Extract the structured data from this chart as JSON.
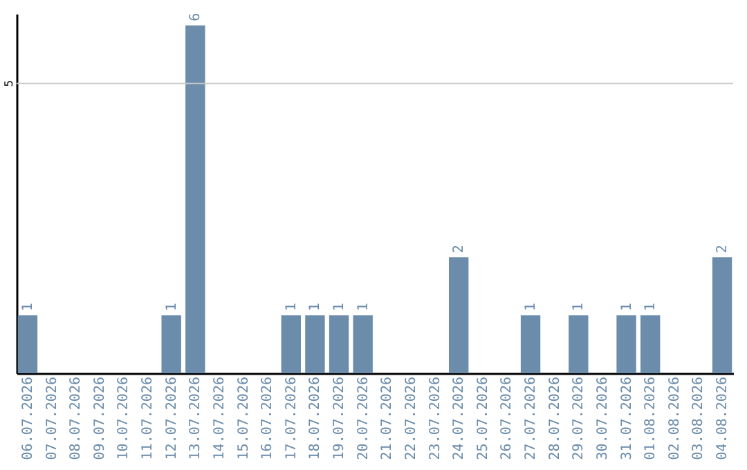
{
  "chart_data": {
    "type": "bar",
    "categories": [
      "06.07.2026",
      "07.07.2026",
      "08.07.2026",
      "09.07.2026",
      "10.07.2026",
      "11.07.2026",
      "12.07.2026",
      "13.07.2026",
      "14.07.2026",
      "15.07.2026",
      "16.07.2026",
      "17.07.2026",
      "18.07.2026",
      "19.07.2026",
      "20.07.2026",
      "21.07.2026",
      "22.07.2026",
      "23.07.2026",
      "24.07.2026",
      "25.07.2026",
      "26.07.2026",
      "27.07.2026",
      "28.07.2026",
      "29.07.2026",
      "30.07.2026",
      "31.07.2026",
      "01.08.2026",
      "02.08.2026",
      "03.08.2026",
      "04.08.2026"
    ],
    "values": [
      1,
      0,
      0,
      0,
      0,
      0,
      1,
      6,
      0,
      0,
      0,
      1,
      1,
      1,
      1,
      0,
      0,
      0,
      2,
      0,
      0,
      1,
      0,
      1,
      0,
      1,
      1,
      0,
      0,
      2
    ],
    "value_labels": [
      "1",
      null,
      null,
      null,
      null,
      null,
      "1",
      "6",
      null,
      null,
      null,
      "1",
      "1",
      "1",
      "1",
      null,
      null,
      null,
      "2",
      null,
      null,
      "1",
      null,
      "1",
      null,
      "1",
      "1",
      null,
      null,
      "2"
    ],
    "color": "#6b8cab",
    "ylim": [
      0,
      6.2
    ],
    "ref_lines": [
      {
        "axis": "y",
        "value": 5,
        "label": "5",
        "color": "#c8c8c8"
      }
    ]
  }
}
